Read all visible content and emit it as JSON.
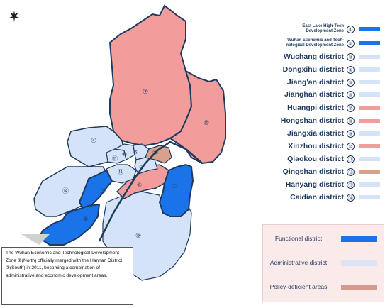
{
  "legend": [
    {
      "num": "①",
      "label": "East Lake High-Tech Development Zone",
      "color": "#1a73e8",
      "small": true
    },
    {
      "num": "②",
      "label": "Wuhan Economic and Tech-nological Development Zone",
      "color": "#1a73e8",
      "small": true
    },
    {
      "num": "③",
      "label": "Wuchang district",
      "color": "#d4e3f7",
      "small": false
    },
    {
      "num": "④",
      "label": "Dongxihu district",
      "color": "#d4e3f7",
      "small": false
    },
    {
      "num": "⑤",
      "label": "Jiang'an district",
      "color": "#d4e3f7",
      "small": false
    },
    {
      "num": "⑥",
      "label": "Jianghan district",
      "color": "#d4e3f7",
      "small": false
    },
    {
      "num": "⑦",
      "label": "Huangpi district",
      "color": "#f29c9c",
      "small": false
    },
    {
      "num": "⑧",
      "label": "Hongshan district",
      "color": "#f29c9c",
      "small": false
    },
    {
      "num": "⑨",
      "label": "Jiangxia district",
      "color": "#d4e3f7",
      "small": false
    },
    {
      "num": "⑩",
      "label": "Xinzhou district",
      "color": "#f29c9c",
      "small": false
    },
    {
      "num": "⑪",
      "label": "Qiaokou district",
      "color": "#d4e3f7",
      "small": false
    },
    {
      "num": "⑫",
      "label": "Qingshan district",
      "color": "#d9a08a",
      "small": false
    },
    {
      "num": "⑬",
      "label": "Hanyang district",
      "color": "#d4e3f7",
      "small": false
    },
    {
      "num": "⑭",
      "label": "Caidian district",
      "color": "#d4e3f7",
      "small": false
    }
  ],
  "category_legend": [
    {
      "label": "Functional district",
      "color": "#1a73e8"
    },
    {
      "label": "Administrative district",
      "color": "#dde4f5"
    },
    {
      "label": "Policy-deficient areas",
      "color": "#d89a8c"
    }
  ],
  "note": "The Wuhan Economic and Technological Development Zone ②(North) officially merged with the Hannan District ②(South) in 2011, becoming a combination of administrative and economic development areas.",
  "map_labels": [
    "⑦",
    "⑩",
    "④",
    "⑭",
    "⑪",
    "⑥",
    "⑤",
    "③",
    "⑫",
    "②",
    "⑧",
    "①",
    "②",
    "⑨",
    "⑬"
  ],
  "colors": {
    "functional": "#1a73e8",
    "administrative": "#d4e3f7",
    "policy": "#f29c9c",
    "qingshan": "#d9a08a",
    "border": "#1f3a5f"
  }
}
